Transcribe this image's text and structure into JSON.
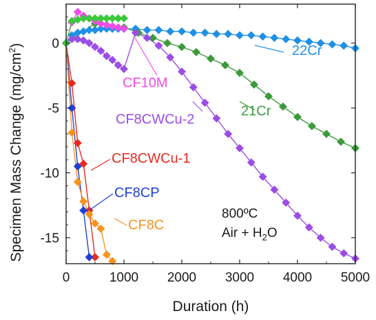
{
  "chart_data": {
    "type": "scatter",
    "xlabel": "Duration (h)",
    "ylabel": "Specimen Mass Change (mg/cm",
    "ylabel_sup": "2",
    "ylabel_close": ")",
    "xlim": [
      0,
      5000
    ],
    "ylim": [
      -17,
      3
    ],
    "xticks": [
      0,
      1000,
      2000,
      3000,
      4000,
      5000
    ],
    "yticks": [
      0,
      -5,
      -10,
      -15
    ],
    "conditions": {
      "line1": "800ºC",
      "line2_a": "Air + H",
      "line2_sub": "2",
      "line2_b": "O"
    },
    "series": [
      {
        "name": "22Cr",
        "color": "#1E90E6",
        "x": [
          0,
          100,
          200,
          300,
          400,
          500,
          600,
          700,
          800,
          900,
          1000,
          1200,
          1400,
          1600,
          1800,
          2000,
          2200,
          2400,
          2600,
          2800,
          3000,
          3200,
          3400,
          3600,
          3800,
          4000,
          4200,
          4400,
          4600,
          4800,
          5000
        ],
        "y": [
          0,
          0.6,
          0.8,
          0.9,
          1.0,
          1.0,
          1.1,
          1.1,
          1.1,
          1.1,
          1.1,
          1.1,
          1.0,
          1.0,
          0.9,
          0.9,
          0.8,
          0.8,
          0.7,
          0.7,
          0.6,
          0.6,
          0.5,
          0.4,
          0.3,
          0.2,
          0.1,
          0,
          -0.1,
          -0.2,
          -0.4
        ]
      },
      {
        "name": "21Cr",
        "color": "#3C9A3C",
        "x": [
          0,
          500,
          1000,
          1250,
          1500,
          1750,
          2000,
          2250,
          2500,
          2750,
          3000,
          3250,
          3500,
          3750,
          4000,
          4250,
          4500,
          4750,
          5000
        ],
        "y": [
          0,
          1.5,
          1.2,
          0.8,
          0.4,
          0.0,
          -0.3,
          -0.7,
          -1.2,
          -1.7,
          -2.3,
          -3.2,
          -4.1,
          -4.9,
          -5.7,
          -6.4,
          -7.0,
          -7.6,
          -8.1
        ]
      },
      {
        "name": "CF8CWCu-2",
        "color": "#9B4DE6",
        "x": [
          0,
          100,
          200,
          300,
          400,
          500,
          600,
          700,
          800,
          900,
          1000,
          1200,
          1400,
          1600,
          1800,
          2000,
          2200,
          2400,
          2600,
          2800,
          3000,
          3200,
          3400,
          3600,
          3800,
          4000,
          4200,
          4400,
          4600,
          4800,
          5000
        ],
        "y": [
          0,
          0.3,
          0.3,
          0.2,
          0,
          -0.3,
          -0.6,
          -1.0,
          -1.3,
          -1.7,
          -2.0,
          0.8,
          0.4,
          -0.2,
          -1.1,
          -2.2,
          -3.4,
          -4.6,
          -5.8,
          -7.0,
          -8.1,
          -9.2,
          -10.3,
          -11.3,
          -12.3,
          -13.3,
          -14.2,
          -15.0,
          -15.7,
          -16.2,
          -16.6
        ]
      },
      {
        "name": "CF10M",
        "color": "#F04CE6",
        "x": [
          0,
          100,
          200,
          300,
          400,
          500,
          600,
          700,
          800,
          900,
          1000
        ],
        "y": [
          0,
          1.6,
          2.4,
          2.1,
          1.9,
          1.7,
          1.5,
          1.4,
          1.3,
          1.2,
          1.1
        ]
      },
      {
        "name": "CF8CWCu-1",
        "color": "#E82A1E",
        "x": [
          0,
          100,
          200,
          300,
          400,
          500
        ],
        "y": [
          0,
          -3.1,
          -7.7,
          -9.3,
          -12.9,
          -16.5
        ]
      },
      {
        "name": "CF8CP",
        "color": "#1F3FD6",
        "x": [
          0,
          100,
          200,
          300,
          400
        ],
        "y": [
          0,
          -5.0,
          -9.5,
          -12.9,
          -16.5
        ]
      },
      {
        "name": "CF8C",
        "color": "#F7941D",
        "x": [
          0,
          100,
          200,
          300,
          400,
          500,
          600,
          700,
          800
        ],
        "y": [
          0,
          -6.9,
          -10.7,
          -12.2,
          -13.2,
          -13.9,
          -14.3,
          -16.3,
          -16.8
        ]
      },
      {
        "name": "",
        "color": "#3CC83C",
        "x": [
          0,
          100,
          200,
          300,
          400,
          500,
          600,
          700,
          800,
          900,
          1000
        ],
        "y": [
          0,
          1.7,
          1.8,
          1.9,
          1.9,
          1.9,
          1.9,
          1.9,
          1.9,
          1.9,
          1.9
        ]
      }
    ],
    "annotations": [
      {
        "text": "22Cr",
        "color": "#1E90E6"
      },
      {
        "text": "21Cr",
        "color": "#3C9A3C"
      },
      {
        "text": "CF10M",
        "color": "#F04CE6"
      },
      {
        "text": "CF8CWCu-2",
        "color": "#9B4DE6"
      },
      {
        "text": "CF8CWCu-1",
        "color": "#E82A1E"
      },
      {
        "text": "CF8CP",
        "color": "#1F3FD6"
      },
      {
        "text": "CF8C",
        "color": "#F7941D"
      }
    ]
  }
}
